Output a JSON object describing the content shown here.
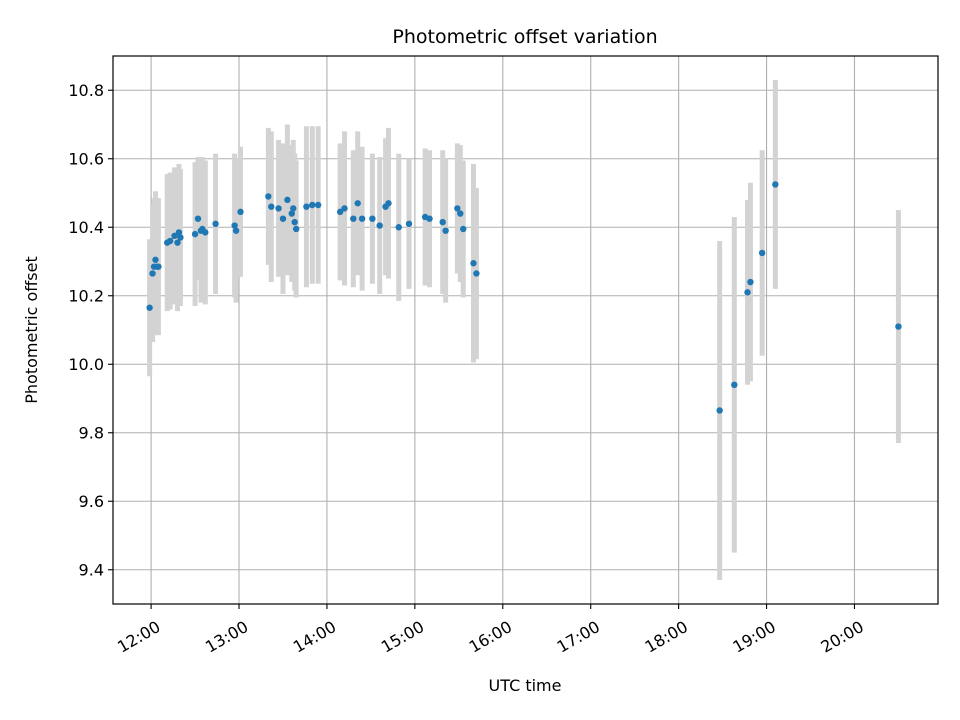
{
  "chart_data": {
    "type": "scatter",
    "title": "Photometric offset variation",
    "xlabel": "UTC time",
    "ylabel": "Photometric offset",
    "xlim": [
      "11:34",
      "20:57"
    ],
    "ylim": [
      9.3,
      10.9
    ],
    "xticks": [
      "12:00",
      "13:00",
      "14:00",
      "15:00",
      "16:00",
      "17:00",
      "18:00",
      "19:00",
      "20:00"
    ],
    "yticks": [
      9.4,
      9.6,
      9.8,
      10.0,
      10.2,
      10.4,
      10.6,
      10.8
    ],
    "grid": true,
    "colors": {
      "point": "#1f77b4",
      "errorbar": "#d3d3d3",
      "grid": "#b0b0b0"
    },
    "series": [
      {
        "x": [
          "11:59",
          "12:01",
          "12:02",
          "12:03",
          "12:04",
          "12:05",
          "12:11",
          "12:13",
          "12:16",
          "12:18",
          "12:19",
          "12:20",
          "12:30",
          "12:32",
          "12:34",
          "12:35",
          "12:37",
          "12:44",
          "12:57",
          "12:58",
          "13:01",
          "13:20",
          "13:22",
          "13:27",
          "13:30",
          "13:33",
          "13:36",
          "13:37",
          "13:38",
          "13:39",
          "13:46",
          "13:50",
          "13:54",
          "14:09",
          "14:12",
          "14:18",
          "14:21",
          "14:24",
          "14:31",
          "14:36",
          "14:40",
          "14:42",
          "14:49",
          "14:56",
          "15:07",
          "15:10",
          "15:19",
          "15:21",
          "15:29",
          "15:31",
          "15:33",
          "15:40",
          "15:42"
        ],
        "y": [
          10.165,
          10.265,
          10.285,
          10.305,
          10.285,
          10.285,
          10.355,
          10.36,
          10.375,
          10.355,
          10.385,
          10.37,
          10.38,
          10.425,
          10.39,
          10.395,
          10.385,
          10.41,
          10.405,
          10.39,
          10.445,
          10.49,
          10.46,
          10.455,
          10.425,
          10.48,
          10.44,
          10.455,
          10.415,
          10.395,
          10.46,
          10.465,
          10.465,
          10.445,
          10.455,
          10.425,
          10.47,
          10.425,
          10.425,
          10.405,
          10.46,
          10.47,
          10.4,
          10.41,
          10.43,
          10.425,
          10.415,
          10.39,
          10.455,
          10.44,
          10.395,
          10.295,
          10.265
        ],
        "err": [
          0.2,
          0.2,
          0.2,
          0.2,
          0.2,
          0.2,
          0.2,
          0.2,
          0.2,
          0.2,
          0.2,
          0.2,
          0.21,
          0.18,
          0.21,
          0.21,
          0.21,
          0.205,
          0.21,
          0.21,
          0.19,
          0.2,
          0.22,
          0.2,
          0.22,
          0.22,
          0.2,
          0.2,
          0.2,
          0.2,
          0.235,
          0.23,
          0.23,
          0.2,
          0.225,
          0.2,
          0.21,
          0.21,
          0.19,
          0.2,
          0.2,
          0.22,
          0.215,
          0.19,
          0.2,
          0.2,
          0.21,
          0.21,
          0.19,
          0.2,
          0.2,
          0.29,
          0.25
        ]
      },
      {
        "x": [
          "18:28",
          "18:38",
          "18:47",
          "18:49",
          "18:57",
          "19:06",
          "20:30"
        ],
        "y": [
          9.865,
          9.94,
          10.21,
          10.24,
          10.325,
          10.525,
          10.11
        ],
        "err": [
          0.495,
          0.49,
          0.27,
          0.29,
          0.3,
          0.305,
          0.34
        ]
      }
    ]
  }
}
